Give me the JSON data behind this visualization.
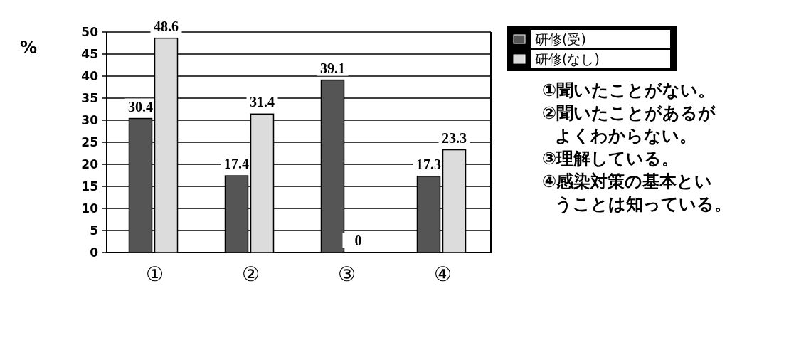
{
  "chart_data": {
    "type": "bar",
    "ylabel": "%",
    "categories": [
      "①",
      "②",
      "③",
      "④"
    ],
    "series": [
      {
        "name": "研修(受)",
        "color": "#555555",
        "values": [
          30.4,
          17.4,
          39.1,
          17.3
        ]
      },
      {
        "name": "研修(なし)",
        "color": "#dcdcdc",
        "values": [
          48.6,
          31.4,
          0,
          23.3
        ]
      }
    ],
    "ylim": [
      0,
      50
    ],
    "yticks": [
      0,
      5,
      10,
      15,
      20,
      25,
      30,
      35,
      40,
      45,
      50
    ],
    "grid": "y",
    "legend": "top right",
    "data_labels": true,
    "annotations": [
      "①聞いたことがない。",
      "②聞いたことがあるがよくわからない。",
      "③理解している。",
      "④感染対策の基本ということは知っている。"
    ]
  }
}
